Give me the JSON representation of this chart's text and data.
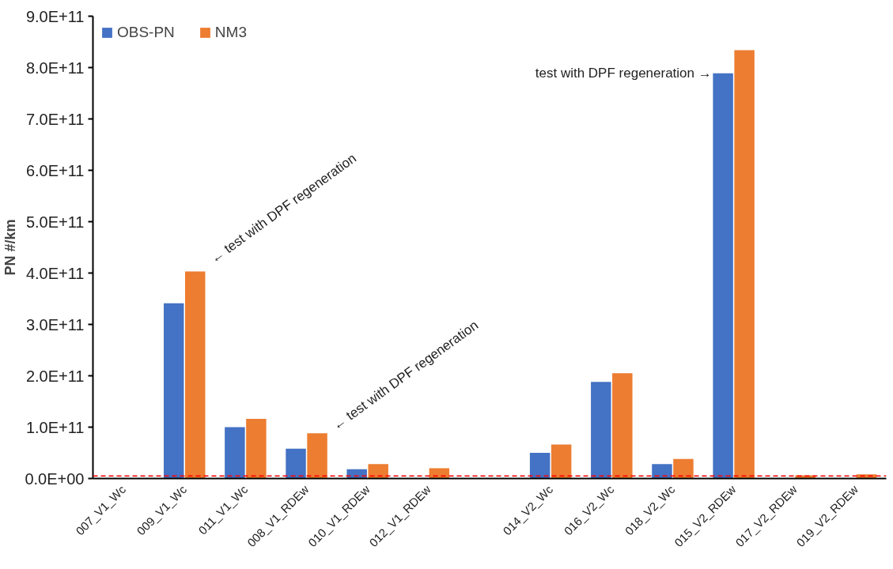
{
  "chart_data": {
    "type": "bar",
    "ylabel": "PN #/km",
    "categories": [
      "007_V1_Wc",
      "009_V1_Wc",
      "011_V1_Wc",
      "008_V1_RDEw",
      "010_V1_RDEw",
      "012_V1_RDEw",
      null,
      "014_V2_Wc",
      "016_V2_Wc",
      "018_V2_Wc",
      "015_V2_RDEw",
      "017_V2_RDEw",
      "019_V2_RDEw"
    ],
    "series": [
      {
        "name": "OBS-PN",
        "color": "#4472c4",
        "values": [
          null,
          341000000000.0,
          100000000000.0,
          58000000000.0,
          18000000000.0,
          null,
          null,
          50000000000.0,
          188000000000.0,
          28000000000.0,
          789000000000.0,
          null,
          null
        ]
      },
      {
        "name": "NM3",
        "color": "#ed7d31",
        "values": [
          null,
          403000000000.0,
          116000000000.0,
          88000000000.0,
          28000000000.0,
          20000000000.0,
          null,
          66000000000.0,
          205000000000.0,
          38000000000.0,
          834000000000.0,
          6000000000.0,
          8000000000.0
        ]
      }
    ],
    "ylim": [
      0,
      900000000000.0
    ],
    "yticks": [
      {
        "value": 0,
        "label": "0.0E+00"
      },
      {
        "value": 100000000000.0,
        "label": "1.0E+11"
      },
      {
        "value": 200000000000.0,
        "label": "2.0E+11"
      },
      {
        "value": 300000000000.0,
        "label": "3.0E+11"
      },
      {
        "value": 400000000000.0,
        "label": "4.0E+11"
      },
      {
        "value": 500000000000.0,
        "label": "5.0E+11"
      },
      {
        "value": 600000000000.0,
        "label": "6.0E+11"
      },
      {
        "value": 700000000000.0,
        "label": "7.0E+11"
      },
      {
        "value": 800000000000.0,
        "label": "8.0E+11"
      },
      {
        "value": 900000000000.0,
        "label": "9.0E+11"
      }
    ],
    "ref_lines": [
      {
        "axis": "y",
        "value": 5000000000.0,
        "color": "#ff0000",
        "line_style": "dashed"
      }
    ],
    "annotations": [
      {
        "text": "← test with  DPF regeneration",
        "x": "009_V1_Wc",
        "y": 403000000000.0
      },
      {
        "text": "← test with  DPF regeneration",
        "x": "008_V1_RDEw",
        "y": 88000000000.0
      },
      {
        "text": "test with  DPF regeneration →",
        "x": "015_V2_RDEw",
        "y": 789000000000.0
      }
    ],
    "legend": "top left",
    "grid": false
  }
}
